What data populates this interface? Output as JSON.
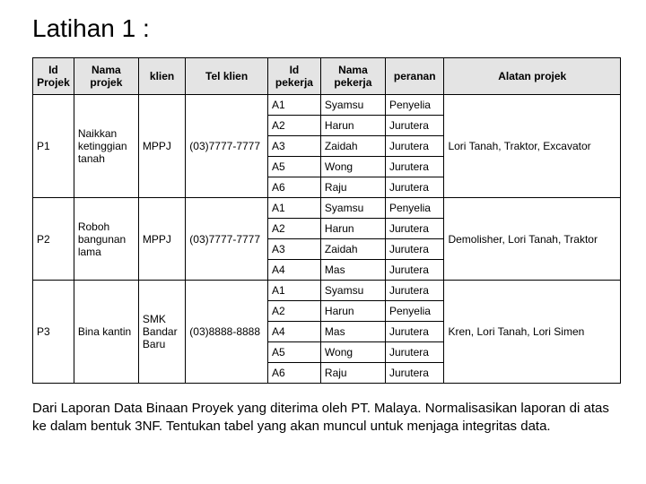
{
  "title": "Latihan 1 :",
  "columns": [
    "Id Projek",
    "Nama projek",
    "klien",
    "Tel klien",
    "Id pekerja",
    "Nama pekerja",
    "peranan",
    "Alatan projek"
  ],
  "col_widths": [
    "7%",
    "11%",
    "8%",
    "14%",
    "9%",
    "11%",
    "10%",
    "30%"
  ],
  "header_bg": "#e4e4e4",
  "groups": [
    {
      "id_projek": "P1",
      "nama_projek": "Naikkan ketinggian tanah",
      "klien": "MPPJ",
      "tel": "(03)7777-7777",
      "alatan": "Lori Tanah, Traktor, Excavator",
      "rows": [
        {
          "idp": "A1",
          "nama": "Syamsu",
          "peranan": "Penyelia"
        },
        {
          "idp": "A2",
          "nama": "Harun",
          "peranan": "Jurutera"
        },
        {
          "idp": "A3",
          "nama": "Zaidah",
          "peranan": "Jurutera"
        },
        {
          "idp": "A5",
          "nama": "Wong",
          "peranan": "Jurutera"
        },
        {
          "idp": "A6",
          "nama": "Raju",
          "peranan": "Jurutera"
        }
      ]
    },
    {
      "id_projek": "P2",
      "nama_projek": "Roboh bangunan lama",
      "klien": "MPPJ",
      "tel": "(03)7777-7777",
      "alatan": "Demolisher, Lori Tanah, Traktor",
      "rows": [
        {
          "idp": "A1",
          "nama": "Syamsu",
          "peranan": "Penyelia"
        },
        {
          "idp": "A2",
          "nama": "Harun",
          "peranan": "Jurutera"
        },
        {
          "idp": "A3",
          "nama": "Zaidah",
          "peranan": "Jurutera"
        },
        {
          "idp": "A4",
          "nama": "Mas",
          "peranan": "Jurutera"
        }
      ]
    },
    {
      "id_projek": "P3",
      "nama_projek": "Bina kantin",
      "klien": "SMK Bandar Baru",
      "tel": "(03)8888-8888",
      "alatan": "Kren, Lori Tanah, Lori Simen",
      "rows": [
        {
          "idp": "A1",
          "nama": "Syamsu",
          "peranan": "Jurutera"
        },
        {
          "idp": "A2",
          "nama": "Harun",
          "peranan": "Penyelia"
        },
        {
          "idp": "A4",
          "nama": "Mas",
          "peranan": "Jurutera"
        },
        {
          "idp": "A5",
          "nama": "Wong",
          "peranan": "Jurutera"
        },
        {
          "idp": "A6",
          "nama": "Raju",
          "peranan": "Jurutera"
        }
      ]
    }
  ],
  "footer": "Dari Laporan Data Binaan Proyek yang diterima oleh PT. Malaya. Normalisasikan laporan di atas ke dalam bentuk 3NF. Tentukan tabel yang akan muncul untuk menjaga integritas data."
}
